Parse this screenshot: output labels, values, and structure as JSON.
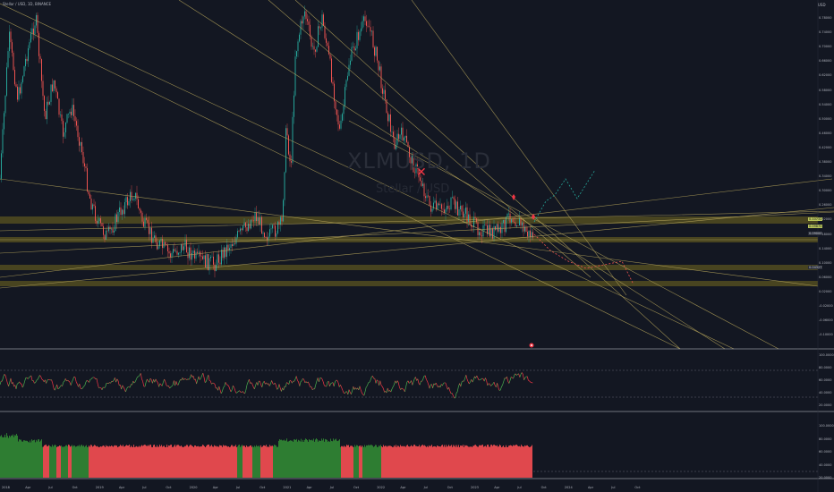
{
  "header": {
    "title": "Stellar / USD, 1D, BINANCE"
  },
  "watermark": {
    "symbol": "XLMUSD, 1D",
    "description": "Stellar / USD"
  },
  "currency": "USD",
  "colors": {
    "background": "#131722",
    "up": "#26a69a",
    "down": "#ef5350",
    "trendline": "#b4a35a",
    "zone_fill": "#5b5420",
    "rsi_up": "#4caf50",
    "rsi_down": "#f23645",
    "forecast": "#26a69a",
    "forecast_down": "#ef5350",
    "volume_green": "#2e7d32",
    "volume_red": "#e0484d"
  },
  "price_axis": {
    "labels": [
      "0.78000",
      "0.74000",
      "0.70000",
      "0.66000",
      "0.62000",
      "0.58000",
      "0.54000",
      "0.50000",
      "0.46000",
      "0.42000",
      "0.38000",
      "0.34000",
      "0.30000",
      "0.26000",
      "0.22000",
      "0.18000",
      "0.14000",
      "0.10000",
      "0.06000",
      "0.02000",
      "-0.02000",
      "-0.06000",
      "-0.10000"
    ]
  },
  "price_tags": [
    {
      "text": "0.10732",
      "kind": "highlight"
    },
    {
      "text": "0.09870",
      "kind": "highlight"
    },
    {
      "text": "0.09000",
      "kind": "plain"
    },
    {
      "text": "0.04327",
      "kind": "plain"
    }
  ],
  "rsi_axis": {
    "labels": [
      "100.0000",
      "80.0000",
      "60.0000",
      "40.0000",
      "20.0000"
    ]
  },
  "volume_axis": {
    "labels": [
      "100.0000",
      "80.0000",
      "60.0000",
      "40.0000",
      "20.0000"
    ]
  },
  "time_axis": {
    "labels": [
      "2018",
      "Apr",
      "Jul",
      "Oct",
      "2019",
      "Apr",
      "Jul",
      "Oct",
      "2020",
      "Apr",
      "Jul",
      "Oct",
      "2021",
      "Apr",
      "Jul",
      "Oct",
      "2022",
      "Apr",
      "Jul",
      "Oct",
      "2023",
      "Apr",
      "Jul",
      "Oct",
      "2024",
      "Apr",
      "Jul",
      "Oct"
    ]
  },
  "markers": {
    "cross": "✕"
  }
}
